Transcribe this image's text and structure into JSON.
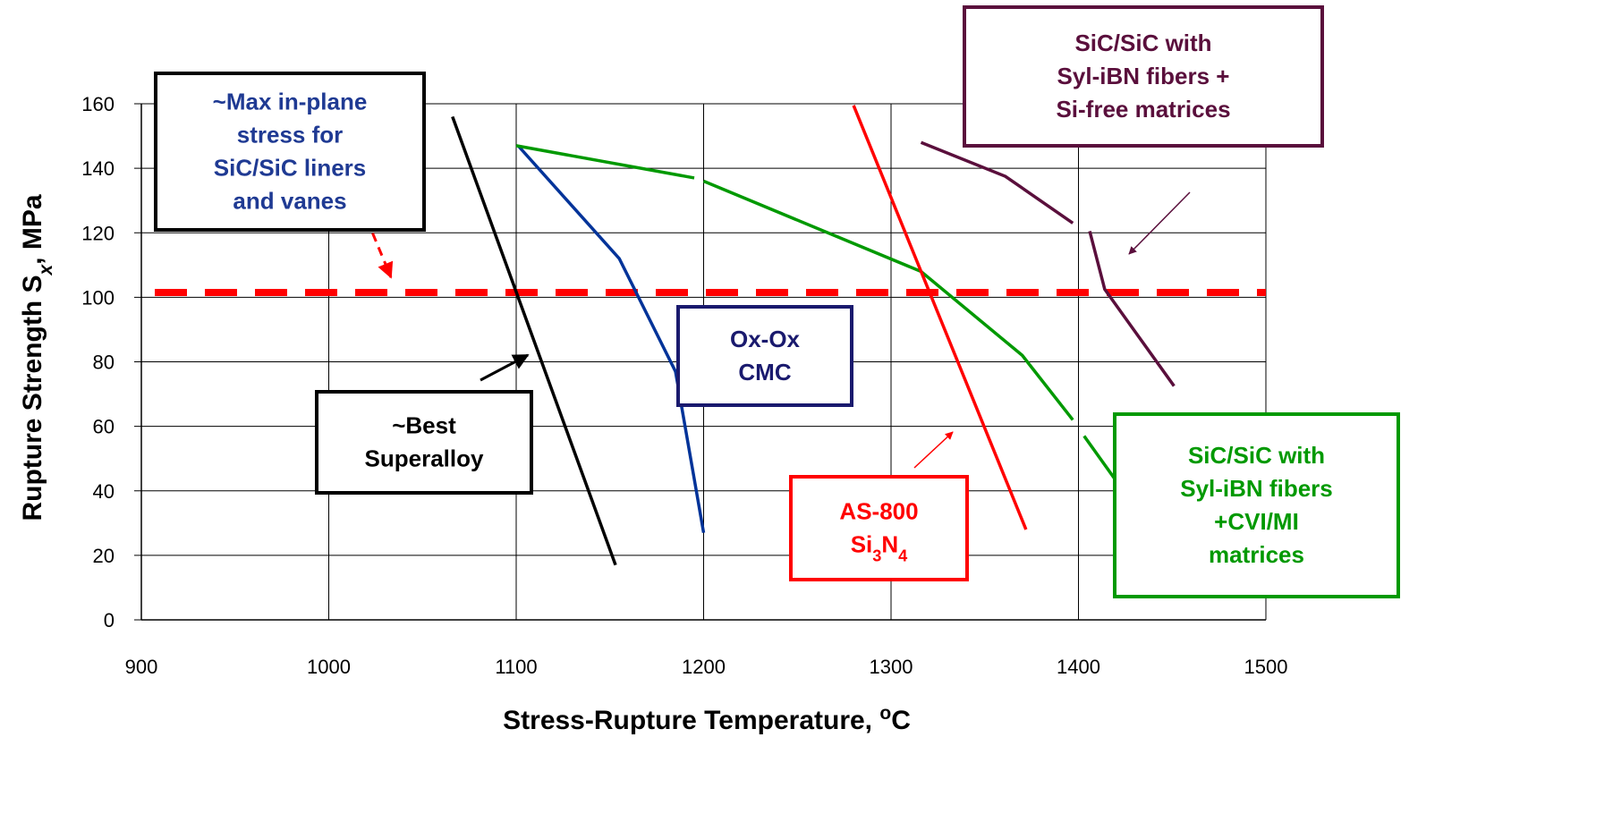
{
  "chart_data": {
    "type": "line",
    "x_label": {
      "parts": [
        "Stress-Rupture Temperature, ",
        "o",
        "C"
      ],
      "styles": [
        "normal",
        "sup",
        "normal"
      ]
    },
    "y_label": {
      "parts": [
        "Rupture Strength S",
        "x",
        ", MPa"
      ],
      "styles": [
        "normal",
        "sub-italic",
        "normal"
      ]
    },
    "xlim": [
      900,
      1500
    ],
    "xticks": [
      900,
      1000,
      1100,
      1200,
      1300,
      1400,
      1500
    ],
    "ylim": [
      0,
      160
    ],
    "yticks": [
      0,
      20,
      40,
      60,
      80,
      100,
      120,
      140,
      160
    ],
    "grid": true,
    "reference_line": {
      "value": 101.5,
      "color": "#ff0000",
      "style": "dashed"
    },
    "series": [
      {
        "name": "~Best Superalloy",
        "color": "#000000",
        "x": [
          1066,
          1153
        ],
        "values": [
          156,
          17
        ]
      },
      {
        "name": "Ox-Ox CMC",
        "color": "#003399",
        "x": [
          1101,
          1155,
          1185,
          1200
        ],
        "values": [
          147,
          112,
          77,
          27
        ]
      },
      {
        "name": "SiC/SiC with Syl-iBN fibers +CVI/MI matrices",
        "color": "#009900",
        "x": [
          1100,
          1195,
          null,
          1200,
          1316,
          1370,
          1397,
          null,
          1403,
          1419
        ],
        "values": [
          147,
          137,
          null,
          136,
          108,
          82,
          62,
          null,
          57,
          44
        ]
      },
      {
        "name": "AS-800 Si3N4",
        "color": "#ff0000",
        "x": [
          1280,
          1372
        ],
        "values": [
          159.5,
          28
        ]
      },
      {
        "name": "SiC/SiC with Syl-iBN fibers + Si-free matrices",
        "color": "#5a0f3c",
        "x": [
          1316,
          1361,
          1397,
          null,
          1406,
          1414,
          1451
        ],
        "values": [
          148,
          137.5,
          123,
          null,
          120.5,
          102.5,
          72.5
        ]
      }
    ],
    "annotations": [
      {
        "color": "#1f3a93",
        "border": "#000000",
        "lines": [
          {
            "parts": [
              "~Max in-plane"
            ],
            "styles": [
              "normal"
            ]
          },
          {
            "parts": [
              "stress for"
            ],
            "styles": [
              "normal"
            ]
          },
          {
            "parts": [
              "SiC/SiC liners"
            ],
            "styles": [
              "normal"
            ]
          },
          {
            "parts": [
              "and vanes"
            ],
            "styles": [
              "normal"
            ]
          }
        ]
      },
      {
        "color": "#5a0f3c",
        "border": "#5a0f3c",
        "lines": [
          {
            "parts": [
              "SiC/SiC with"
            ],
            "styles": [
              "normal"
            ]
          },
          {
            "parts": [
              "Syl-iBN fibers +"
            ],
            "styles": [
              "normal"
            ]
          },
          {
            "parts": [
              "Si-free matrices"
            ],
            "styles": [
              "normal"
            ]
          }
        ]
      },
      {
        "color": "#1a1a6e",
        "border": "#1a1a6e",
        "lines": [
          {
            "parts": [
              "Ox-Ox"
            ],
            "styles": [
              "normal"
            ]
          },
          {
            "parts": [
              "CMC"
            ],
            "styles": [
              "normal"
            ]
          }
        ]
      },
      {
        "color": "#000000",
        "border": "#000000",
        "lines": [
          {
            "parts": [
              "~Best"
            ],
            "styles": [
              "normal"
            ]
          },
          {
            "parts": [
              "Superalloy"
            ],
            "styles": [
              "normal"
            ]
          }
        ]
      },
      {
        "color": "#ff0000",
        "border": "#ff0000",
        "lines": [
          {
            "parts": [
              "AS-800"
            ],
            "styles": [
              "normal"
            ]
          },
          {
            "parts": [
              "Si",
              "3",
              "N",
              "4"
            ],
            "styles": [
              "normal",
              "sub",
              "normal",
              "sub"
            ]
          }
        ]
      },
      {
        "color": "#009900",
        "border": "#009900",
        "lines": [
          {
            "parts": [
              "SiC/SiC with"
            ],
            "styles": [
              "normal"
            ]
          },
          {
            "parts": [
              "Syl-iBN fibers"
            ],
            "styles": [
              "normal"
            ]
          },
          {
            "parts": [
              "+CVI/MI"
            ],
            "styles": [
              "normal"
            ]
          },
          {
            "parts": [
              "matrices"
            ],
            "styles": [
              "normal"
            ]
          }
        ]
      }
    ]
  }
}
